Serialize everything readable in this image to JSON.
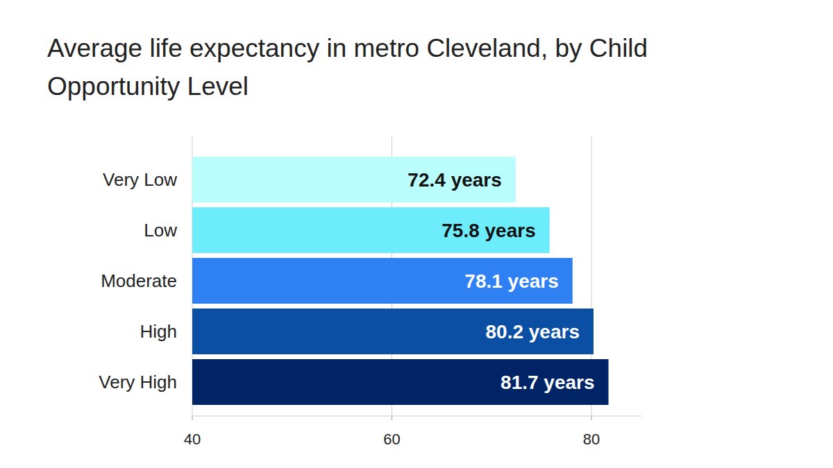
{
  "chart_data": {
    "type": "bar",
    "orientation": "horizontal",
    "title": "Average life expectancy in metro Cleveland, by Child Opportunity Level",
    "categories": [
      "Very Low",
      "Low",
      "Moderate",
      "High",
      "Very High"
    ],
    "values": [
      72.4,
      75.8,
      78.1,
      80.2,
      81.7
    ],
    "value_labels": [
      "72.4 years",
      "75.8 years",
      "78.1 years",
      "80.2 years",
      "81.7 years"
    ],
    "colors": [
      "#b9fdfc",
      "#6dedfb",
      "#2f80f3",
      "#0b4fa5",
      "#002466"
    ],
    "xlim": [
      40,
      85
    ],
    "xticks": [
      40,
      60,
      80
    ],
    "grid": true,
    "data_labels": true
  }
}
